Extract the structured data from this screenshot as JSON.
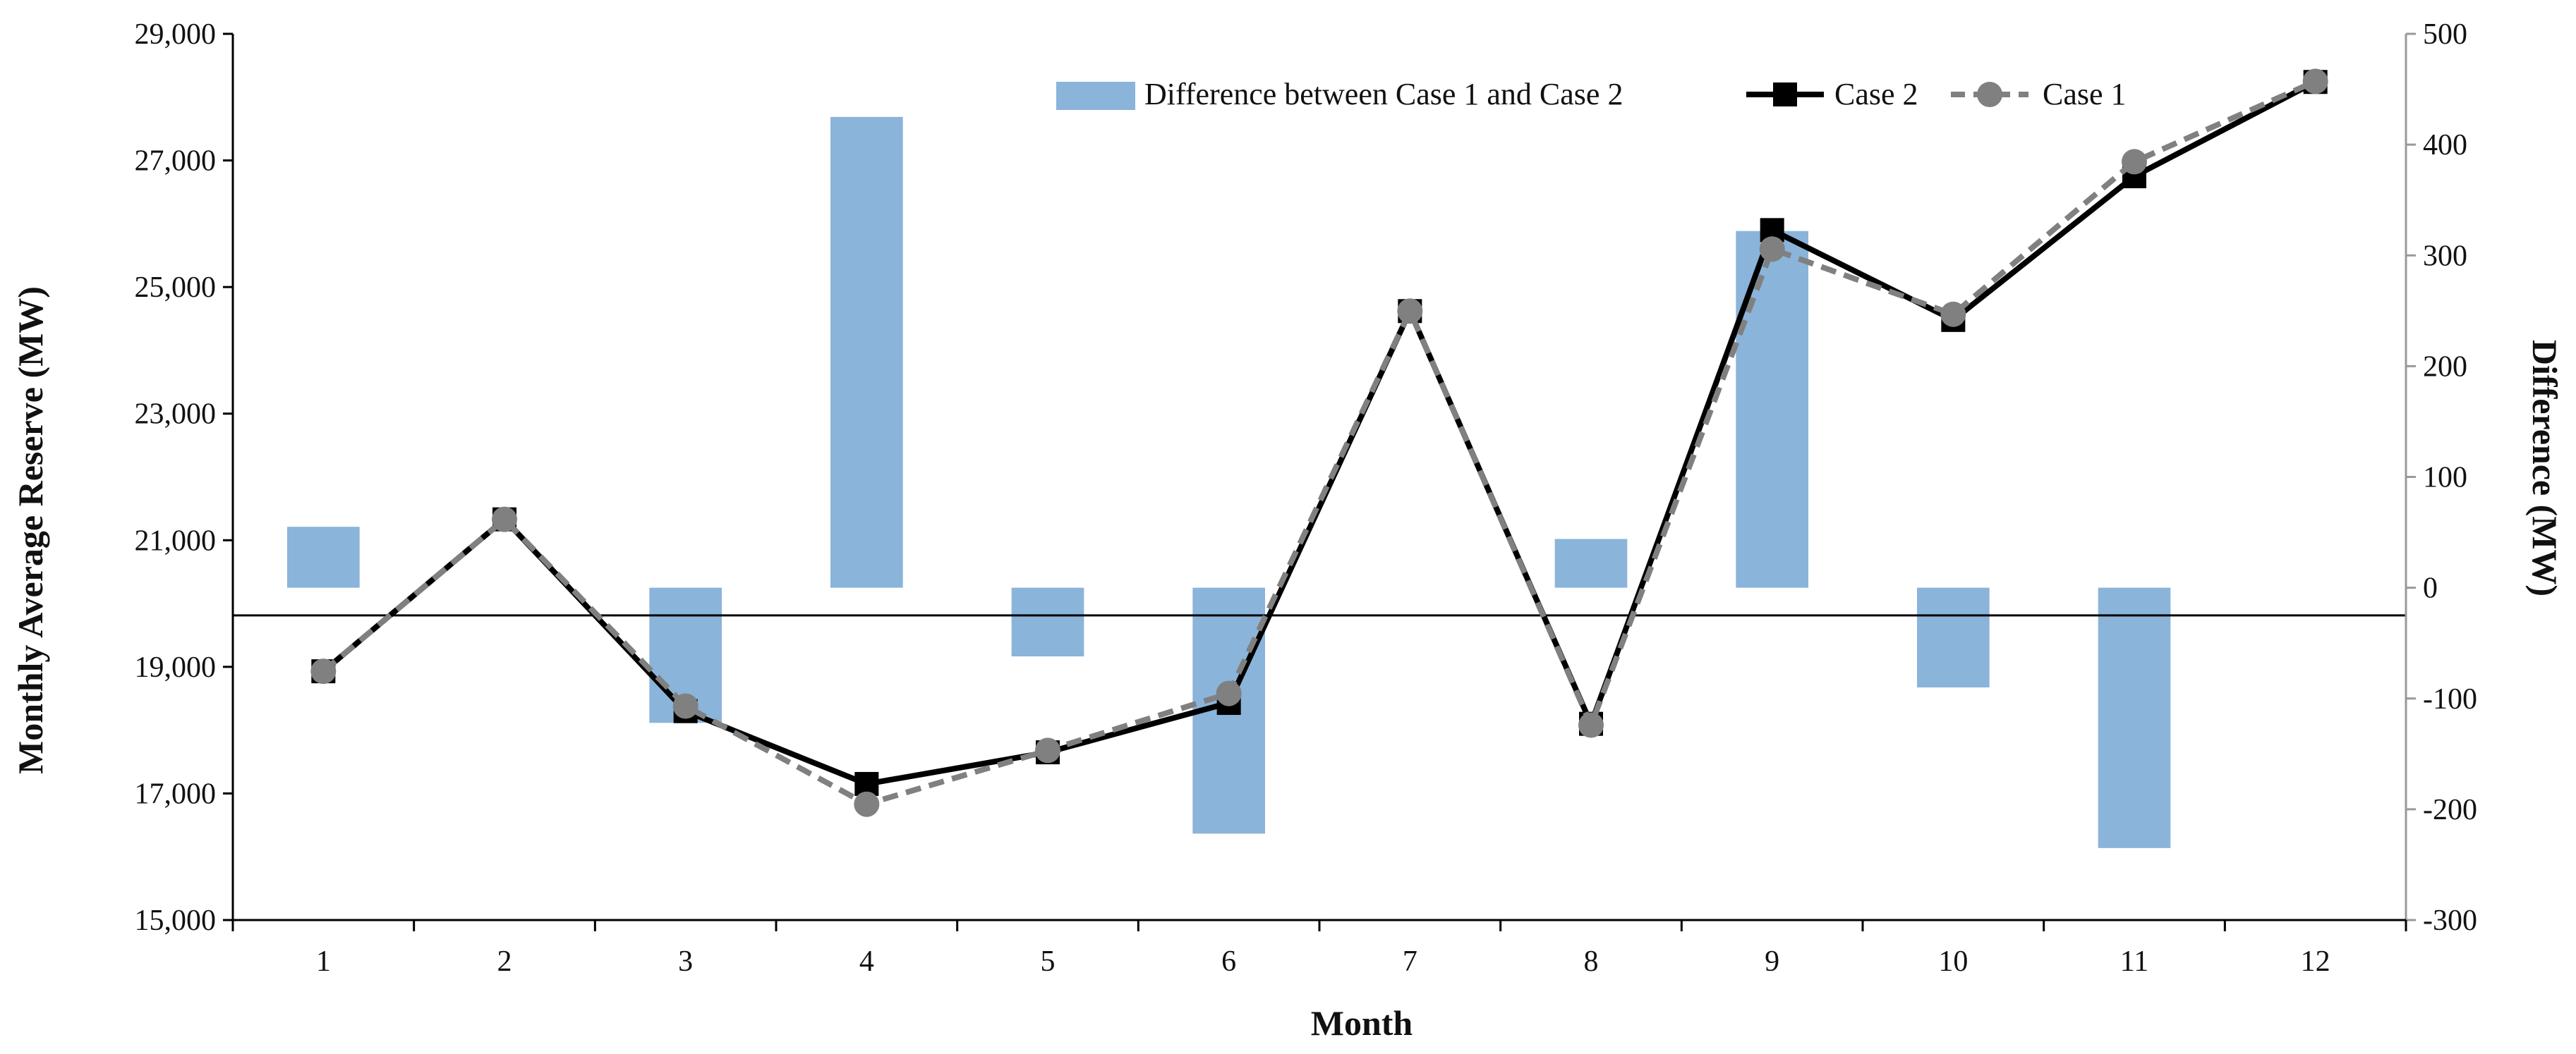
{
  "chart_data": {
    "type": "bar+line",
    "x": [
      1,
      2,
      3,
      4,
      5,
      6,
      7,
      8,
      9,
      10,
      11,
      12
    ],
    "xlabel": "Month",
    "ylabel_left": "Monthly Average Reserve (MW)",
    "ylabel_right": "Difference (MW)",
    "ylim_left": [
      15000,
      29000
    ],
    "ylim_right": [
      -300,
      500
    ],
    "yticks_left": [
      "15,000",
      "17,000",
      "19,000",
      "21,000",
      "23,000",
      "25,000",
      "27,000",
      "29,000"
    ],
    "yticks_left_values": [
      15000,
      17000,
      19000,
      21000,
      23000,
      25000,
      27000,
      29000
    ],
    "yticks_right": [
      "-300",
      "-200",
      "-100",
      "0",
      "100",
      "200",
      "300",
      "400",
      "500"
    ],
    "yticks_right_values": [
      -300,
      -200,
      -100,
      0,
      100,
      200,
      300,
      400,
      500
    ],
    "reference_line_right": -25,
    "series": [
      {
        "name": "Difference between Case 1 and Case 2",
        "kind": "bar",
        "axis": "right",
        "color": "#8ab4da",
        "values": [
          55,
          0,
          -122,
          425,
          -62,
          -222,
          0,
          44,
          322,
          -90,
          -235,
          0
        ]
      },
      {
        "name": "Case 2",
        "kind": "line",
        "axis": "left",
        "color": "#000000",
        "marker": "square",
        "values": [
          18930,
          21330,
          18300,
          17150,
          17650,
          18430,
          24620,
          18100,
          25900,
          24480,
          26750,
          28240
        ]
      },
      {
        "name": "Case 1",
        "kind": "line",
        "axis": "left",
        "color": "#808080",
        "dash": "dashed",
        "marker": "circle",
        "values": [
          18930,
          21330,
          18380,
          16830,
          17680,
          18580,
          24620,
          18080,
          25600,
          24570,
          26980,
          28250
        ]
      }
    ]
  }
}
